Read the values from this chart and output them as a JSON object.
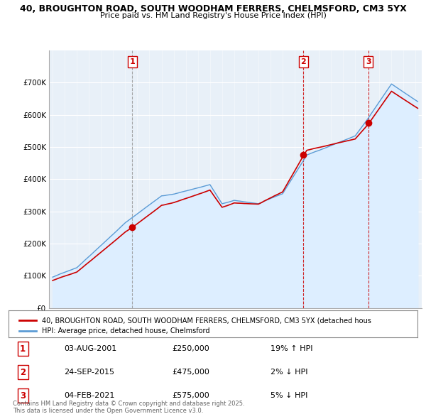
{
  "title1": "40, BROUGHTON ROAD, SOUTH WOODHAM FERRERS, CHELMSFORD, CM3 5YX",
  "title2": "Price paid vs. HM Land Registry's House Price Index (HPI)",
  "legend_red": "40, BROUGHTON ROAD, SOUTH WOODHAM FERRERS, CHELMSFORD, CM3 5YX (detached hous",
  "legend_blue": "HPI: Average price, detached house, Chelmsford",
  "footer": "Contains HM Land Registry data © Crown copyright and database right 2025.\nThis data is licensed under the Open Government Licence v3.0.",
  "table": [
    {
      "num": 1,
      "date": "03-AUG-2001",
      "price": "£250,000",
      "hpi": "19% ↑ HPI"
    },
    {
      "num": 2,
      "date": "24-SEP-2015",
      "price": "£475,000",
      "hpi": "2% ↓ HPI"
    },
    {
      "num": 3,
      "date": "04-FEB-2021",
      "price": "£575,000",
      "hpi": "5% ↓ HPI"
    }
  ],
  "sale_dates_num": [
    2001.583,
    2015.729,
    2021.087
  ],
  "sale_prices": [
    250000,
    475000,
    575000
  ],
  "red_color": "#cc0000",
  "blue_color": "#5b9bd5",
  "blue_fill": "#ddeeff",
  "chart_bg": "#e8f0f8",
  "background": "#ffffff",
  "grid_color": "#ffffff",
  "ylim": [
    0,
    800000
  ],
  "yticks": [
    0,
    100000,
    200000,
    300000,
    400000,
    500000,
    600000,
    700000
  ],
  "ytick_labels": [
    "£0",
    "£100K",
    "£200K",
    "£300K",
    "£400K",
    "£500K",
    "£600K",
    "£700K"
  ],
  "xmin": 1994.7,
  "xmax": 2025.5
}
